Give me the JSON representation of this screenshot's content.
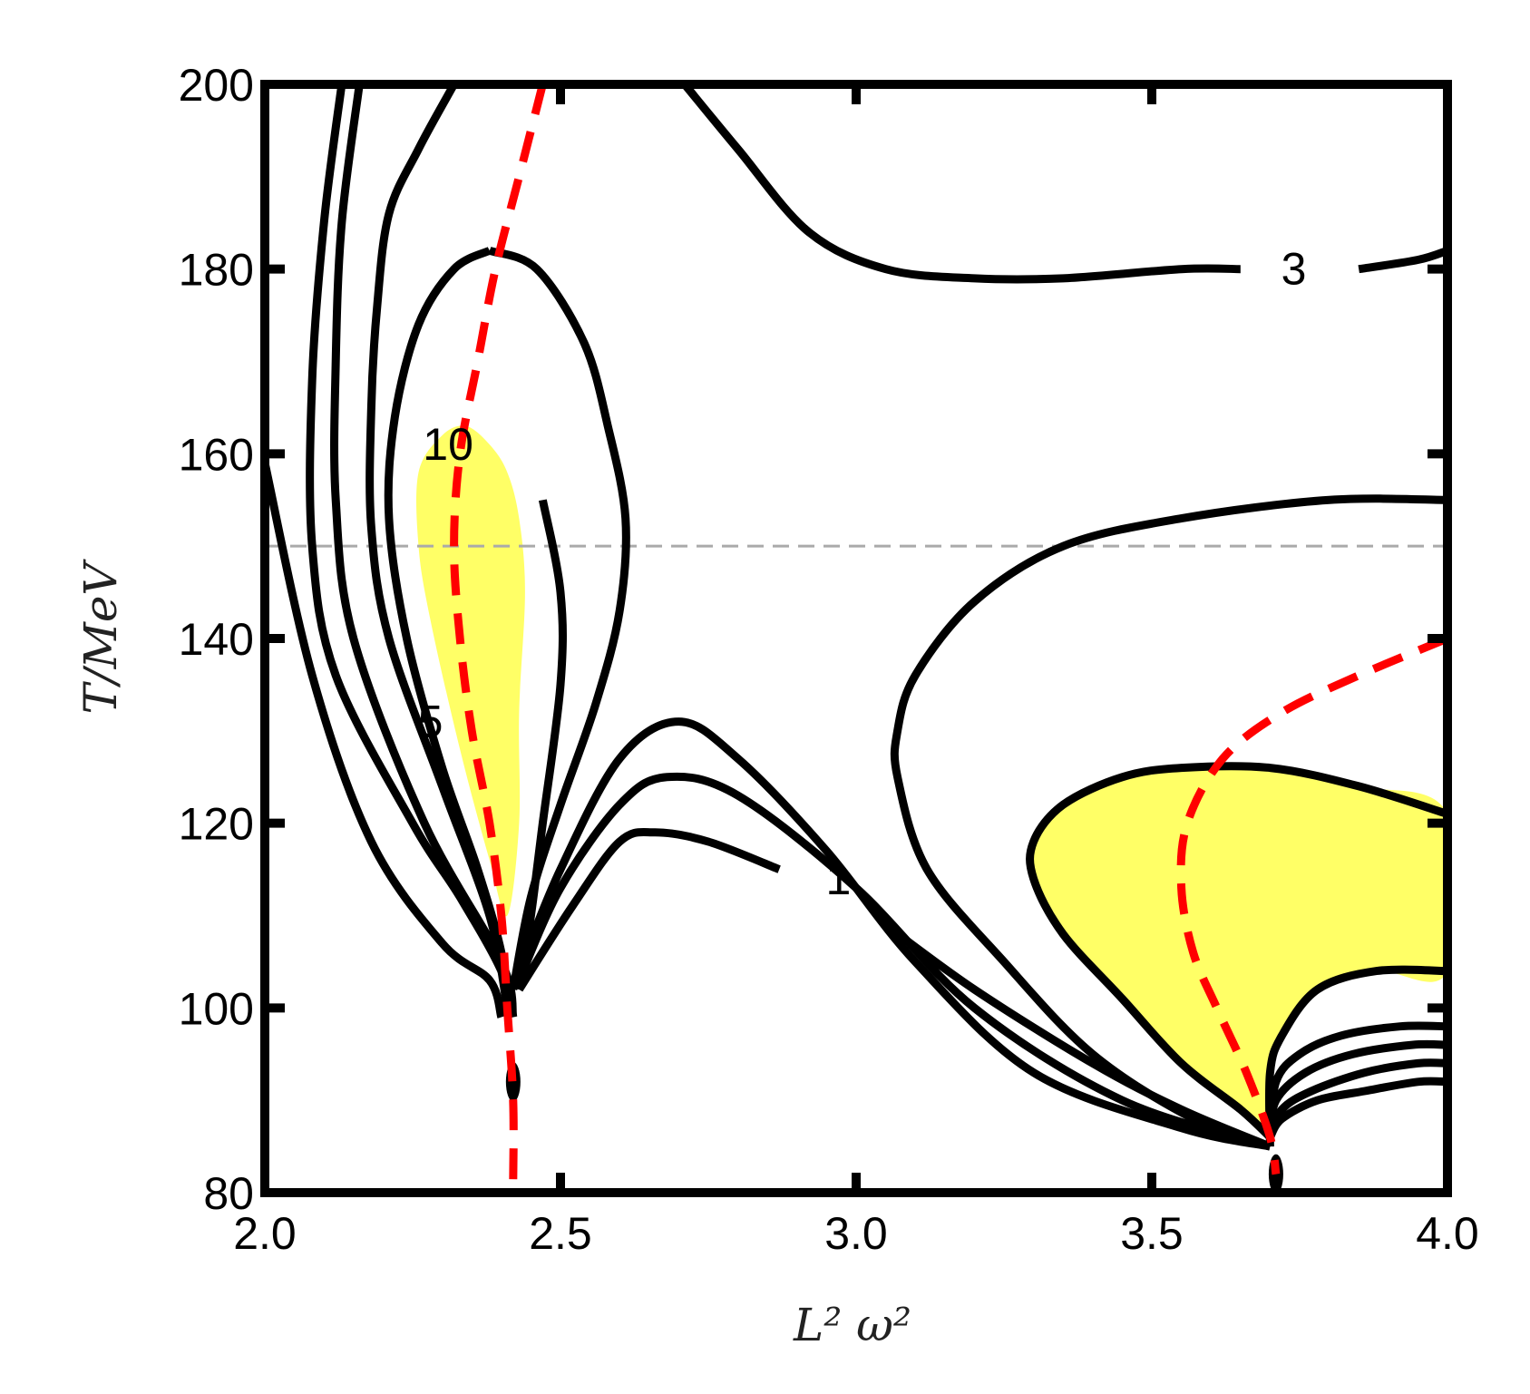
{
  "chart_data": {
    "type": "contour",
    "xlabel": "L² ω²",
    "ylabel": "T/MeV",
    "xlim": [
      2.0,
      4.0
    ],
    "ylim": [
      80,
      200
    ],
    "xticks": [
      "2.0",
      "2.5",
      "3.0",
      "3.5",
      "4.0"
    ],
    "yticks": [
      "80",
      "100",
      "120",
      "140",
      "160",
      "180",
      "200"
    ],
    "reference_line_T": 150,
    "contour_labels": [
      {
        "text": "3",
        "x": 3.74,
        "y": 180
      },
      {
        "text": "10",
        "x": 2.31,
        "y": 161
      },
      {
        "text": "1",
        "x": 2.97,
        "y": 114
      },
      {
        "text": "5",
        "x": 2.28,
        "y": 131
      }
    ],
    "contours": [
      [
        [
          2.0,
          159
        ],
        [
          2.08,
          136
        ],
        [
          2.18,
          118
        ],
        [
          2.3,
          107
        ],
        [
          2.38,
          103
        ],
        [
          2.4,
          99
        ]
      ],
      [
        [
          2.13,
          200
        ],
        [
          2.1,
          185
        ],
        [
          2.08,
          168
        ],
        [
          2.08,
          150
        ],
        [
          2.12,
          136
        ],
        [
          2.25,
          120
        ],
        [
          2.33,
          112
        ],
        [
          2.4,
          104
        ],
        [
          2.42,
          99
        ]
      ],
      [
        [
          2.16,
          200
        ],
        [
          2.13,
          185
        ],
        [
          2.12,
          170
        ],
        [
          2.12,
          155
        ],
        [
          2.15,
          140
        ],
        [
          2.27,
          120
        ],
        [
          2.4,
          105
        ],
        [
          2.42,
          99
        ]
      ],
      [
        [
          2.32,
          200
        ],
        [
          2.26,
          193
        ],
        [
          2.21,
          186
        ],
        [
          2.19,
          176
        ],
        [
          2.18,
          165
        ],
        [
          2.18,
          152
        ],
        [
          2.21,
          140
        ],
        [
          2.3,
          124
        ],
        [
          2.38,
          110
        ],
        [
          2.41,
          100
        ]
      ],
      [
        [
          2.47,
          155
        ],
        [
          2.5,
          145
        ],
        [
          2.5,
          135
        ],
        [
          2.47,
          120
        ],
        [
          2.45,
          110
        ],
        [
          2.43,
          102
        ]
      ],
      [
        [
          2.43,
          104
        ],
        [
          2.5,
          115
        ],
        [
          2.6,
          127
        ],
        [
          2.7,
          131
        ],
        [
          2.8,
          127
        ],
        [
          2.95,
          117
        ],
        [
          3.1,
          105
        ],
        [
          3.3,
          93
        ],
        [
          3.55,
          87
        ],
        [
          3.7,
          85
        ]
      ],
      [
        [
          2.43,
          103
        ],
        [
          2.5,
          113
        ],
        [
          2.6,
          122
        ],
        [
          2.68,
          125
        ],
        [
          2.8,
          123
        ],
        [
          3.0,
          113
        ],
        [
          3.2,
          100
        ],
        [
          3.45,
          90
        ],
        [
          3.7,
          85
        ]
      ],
      [
        [
          2.43,
          102
        ],
        [
          2.52,
          111
        ],
        [
          2.6,
          118
        ],
        [
          2.66,
          119
        ],
        [
          2.75,
          118
        ],
        [
          2.87,
          115
        ]
      ],
      [
        [
          3.05,
          109
        ],
        [
          3.2,
          102
        ],
        [
          3.4,
          94
        ],
        [
          3.55,
          89
        ],
        [
          3.7,
          85
        ]
      ],
      [
        [
          2.71,
          200
        ],
        [
          2.8,
          193
        ],
        [
          2.92,
          184
        ],
        [
          3.05,
          180
        ],
        [
          3.2,
          179
        ],
        [
          3.35,
          179
        ],
        [
          3.55,
          180
        ],
        [
          3.65,
          180
        ]
      ],
      [
        [
          3.85,
          180
        ],
        [
          3.95,
          181
        ],
        [
          4.0,
          182
        ]
      ],
      [
        [
          3.7,
          85
        ],
        [
          3.57,
          88
        ],
        [
          3.4,
          95
        ],
        [
          3.25,
          105
        ],
        [
          3.12,
          115
        ],
        [
          3.07,
          125
        ],
        [
          3.07,
          130
        ],
        [
          3.1,
          136
        ],
        [
          3.2,
          144
        ],
        [
          3.35,
          150
        ],
        [
          3.55,
          153
        ],
        [
          3.8,
          155
        ],
        [
          4.0,
          155
        ]
      ]
    ],
    "yellow_regions": [
      [
        [
          2.34,
          163
        ],
        [
          2.38,
          161
        ],
        [
          2.41,
          158
        ],
        [
          2.43,
          153
        ],
        [
          2.44,
          145
        ],
        [
          2.43,
          132
        ],
        [
          2.43,
          120
        ],
        [
          2.41,
          110
        ],
        [
          2.38,
          116
        ],
        [
          2.33,
          128
        ],
        [
          2.28,
          142
        ],
        [
          2.26,
          150
        ],
        [
          2.26,
          158
        ],
        [
          2.3,
          162
        ]
      ],
      [
        [
          4.0,
          121
        ],
        [
          3.85,
          124
        ],
        [
          3.7,
          126
        ],
        [
          3.55,
          126
        ],
        [
          3.45,
          125
        ],
        [
          3.35,
          122
        ],
        [
          3.3,
          118
        ],
        [
          3.3,
          114
        ],
        [
          3.35,
          108
        ],
        [
          3.45,
          101
        ],
        [
          3.55,
          94
        ],
        [
          3.65,
          89
        ],
        [
          3.7,
          86
        ],
        [
          3.7,
          93
        ],
        [
          3.72,
          97
        ],
        [
          3.78,
          102
        ],
        [
          3.88,
          104
        ],
        [
          4.0,
          104
        ]
      ]
    ],
    "closed_curves": [
      [
        [
          2.38,
          182
        ],
        [
          2.32,
          180
        ],
        [
          2.27,
          175
        ],
        [
          2.25,
          170
        ],
        [
          2.26,
          163
        ],
        [
          2.3,
          158
        ],
        [
          2.34,
          155
        ],
        [
          2.38,
          158
        ],
        [
          2.42,
          167
        ],
        [
          2.46,
          175
        ],
        [
          2.43,
          181
        ]
      ],
      [
        [
          4.0,
          121
        ],
        [
          3.85,
          124
        ],
        [
          3.7,
          126
        ],
        [
          3.55,
          126
        ],
        [
          3.45,
          125
        ],
        [
          3.35,
          122
        ],
        [
          3.3,
          118
        ],
        [
          3.3,
          114
        ],
        [
          3.35,
          108
        ],
        [
          3.45,
          101
        ],
        [
          3.55,
          94
        ],
        [
          3.65,
          89
        ],
        [
          3.7,
          86
        ]
      ]
    ],
    "loop_curve": [
      [
        2.38,
        182
      ],
      [
        2.32,
        180
      ],
      [
        2.26,
        174
      ],
      [
        2.22,
        164
      ],
      [
        2.21,
        153
      ],
      [
        2.24,
        140
      ],
      [
        2.3,
        126
      ],
      [
        2.36,
        115
      ],
      [
        2.4,
        106
      ],
      [
        2.41,
        100
      ]
    ],
    "loop_curve_right": [
      [
        2.38,
        182
      ],
      [
        2.46,
        180
      ],
      [
        2.54,
        172
      ],
      [
        2.58,
        163
      ],
      [
        2.61,
        153
      ],
      [
        2.6,
        143
      ],
      [
        2.56,
        133
      ],
      [
        2.5,
        122
      ],
      [
        2.45,
        112
      ],
      [
        2.42,
        102
      ]
    ],
    "right_lobes": [
      [
        [
          3.7,
          85
        ],
        [
          3.7,
          93
        ],
        [
          3.72,
          97
        ],
        [
          3.78,
          102
        ],
        [
          3.88,
          104
        ],
        [
          4.0,
          104
        ]
      ],
      [
        [
          3.7,
          86
        ],
        [
          3.71,
          92
        ],
        [
          3.75,
          95
        ],
        [
          3.82,
          97
        ],
        [
          3.92,
          98
        ],
        [
          4.0,
          98
        ]
      ],
      [
        [
          3.7,
          86
        ],
        [
          3.71,
          90
        ],
        [
          3.76,
          93
        ],
        [
          3.84,
          95
        ],
        [
          3.94,
          96
        ],
        [
          4.0,
          96
        ]
      ],
      [
        [
          3.7,
          86
        ],
        [
          3.72,
          89
        ],
        [
          3.77,
          91
        ],
        [
          3.86,
          93
        ],
        [
          3.95,
          94
        ],
        [
          4.0,
          94
        ]
      ],
      [
        [
          3.7,
          86
        ],
        [
          3.72,
          88
        ],
        [
          3.78,
          90
        ],
        [
          3.86,
          91
        ],
        [
          3.95,
          92
        ],
        [
          4.0,
          92
        ]
      ]
    ],
    "pinch_points": [
      {
        "x": 2.42,
        "y": 92
      },
      {
        "x": 3.71,
        "y": 82
      }
    ],
    "red_dashed_curves": [
      [
        [
          2.47,
          200
        ],
        [
          2.43,
          190
        ],
        [
          2.39,
          180
        ],
        [
          2.36,
          170
        ],
        [
          2.33,
          160
        ],
        [
          2.32,
          150
        ],
        [
          2.33,
          140
        ],
        [
          2.35,
          130
        ],
        [
          2.38,
          120
        ],
        [
          2.4,
          110
        ],
        [
          2.41,
          100
        ],
        [
          2.42,
          90
        ],
        [
          2.42,
          81
        ]
      ],
      [
        [
          4.0,
          140
        ],
        [
          3.85,
          136
        ],
        [
          3.72,
          132
        ],
        [
          3.62,
          127
        ],
        [
          3.56,
          120
        ],
        [
          3.55,
          113
        ],
        [
          3.57,
          106
        ],
        [
          3.61,
          100
        ],
        [
          3.66,
          93
        ],
        [
          3.7,
          86
        ],
        [
          3.71,
          82
        ]
      ]
    ],
    "colors": {
      "contour": "#000000",
      "fill": "#ffff66",
      "critical_line": "#ff0000",
      "reference_line": "#aaaaaa"
    }
  }
}
